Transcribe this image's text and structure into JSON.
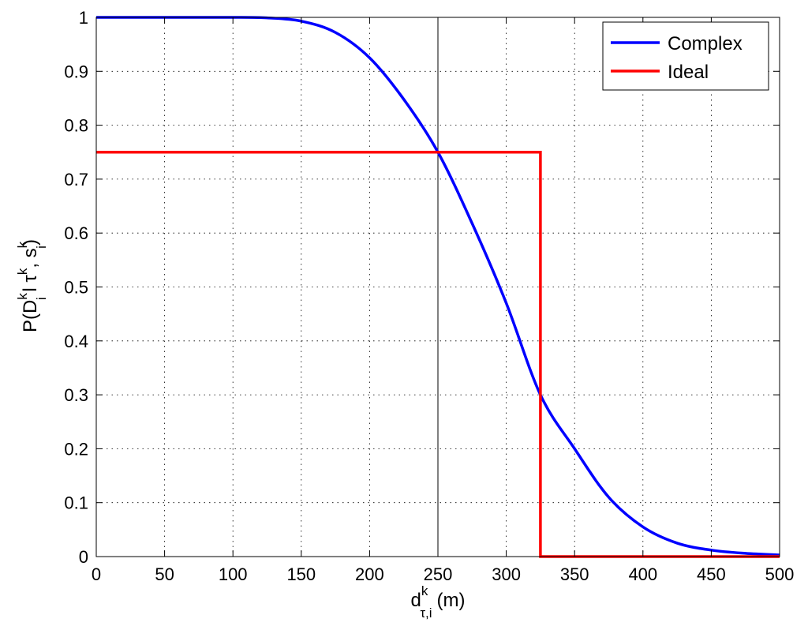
{
  "chart_data": {
    "type": "line",
    "xlim": [
      0,
      500
    ],
    "ylim": [
      0,
      1
    ],
    "x_ticks": [
      0,
      50,
      100,
      150,
      200,
      250,
      300,
      350,
      400,
      450,
      500
    ],
    "y_ticks": [
      0,
      0.1,
      0.2,
      0.3,
      0.4,
      0.5,
      0.6,
      0.7,
      0.8,
      0.9,
      1
    ],
    "x_tick_labels": [
      "0",
      "50",
      "100",
      "150",
      "200",
      "250",
      "300",
      "350",
      "400",
      "450",
      "500"
    ],
    "y_tick_labels": [
      "0",
      "0.1",
      "0.2",
      "0.3",
      "0.4",
      "0.5",
      "0.6",
      "0.7",
      "0.8",
      "0.9",
      "1"
    ],
    "grid": true,
    "legend_position": "top-right",
    "xlabel": {
      "base": "d",
      "sup": "k",
      "sub": "τ,i",
      "unit": "(m)"
    },
    "ylabel": {
      "p1": "P(D",
      "sup1": "k",
      "sub1": "i",
      "p2": " l τ",
      "sup2": "k",
      "p3": ", s",
      "sup3": "k",
      "sub3": "i",
      "p4": ")"
    },
    "reference_line_x": 250,
    "series": [
      {
        "name": "Complex",
        "color": "#0000ff",
        "x": [
          0,
          25,
          50,
          75,
          100,
          125,
          150,
          175,
          200,
          225,
          250,
          275,
          300,
          325,
          350,
          375,
          400,
          425,
          450,
          475,
          500
        ],
        "y": [
          1.0,
          1.0,
          1.0,
          1.0,
          1.0,
          0.999,
          0.993,
          0.972,
          0.925,
          0.848,
          0.75,
          0.618,
          0.47,
          0.3,
          0.2,
          0.11,
          0.055,
          0.025,
          0.012,
          0.006,
          0.003
        ]
      },
      {
        "name": "Ideal",
        "color": "#ff0000",
        "x": [
          0,
          325,
          325,
          500
        ],
        "y": [
          0.75,
          0.75,
          0,
          0
        ]
      }
    ]
  }
}
